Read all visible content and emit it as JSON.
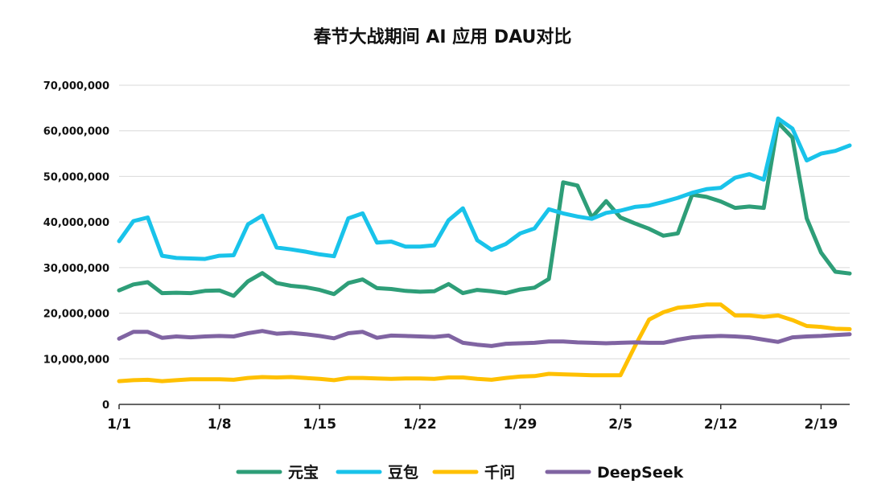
{
  "chart_data": {
    "type": "line",
    "title": "春节大战期间 AI 应用 DAU对比",
    "xlabel": "",
    "ylabel": "",
    "ylim": [
      0,
      70000000
    ],
    "yticks": [
      0,
      10000000,
      20000000,
      30000000,
      40000000,
      50000000,
      60000000,
      70000000
    ],
    "ytick_labels": [
      "0",
      "10,000,000",
      "20,000,000",
      "30,000,000",
      "40,000,000",
      "50,000,000",
      "60,000,000",
      "70,000,000"
    ],
    "x_day_range": [
      1,
      52
    ],
    "xticks": [
      {
        "day": 1,
        "label": "1/1"
      },
      {
        "day": 8,
        "label": "1/8"
      },
      {
        "day": 15,
        "label": "1/15"
      },
      {
        "day": 22,
        "label": "1/22"
      },
      {
        "day": 29,
        "label": "1/29"
      },
      {
        "day": 36,
        "label": "2/5"
      },
      {
        "day": 43,
        "label": "2/12"
      },
      {
        "day": 50,
        "label": "2/19"
      }
    ],
    "legend_position": "bottom",
    "series": [
      {
        "name": "元宝",
        "color": "#2e9e78",
        "values": [
          25000000,
          26300000,
          26800000,
          24400000,
          24500000,
          24400000,
          24900000,
          25000000,
          23800000,
          27000000,
          28800000,
          26600000,
          26000000,
          25700000,
          25100000,
          24200000,
          26600000,
          27400000,
          25500000,
          25300000,
          24900000,
          24700000,
          24800000,
          26400000,
          24400000,
          25100000,
          24800000,
          24400000,
          25200000,
          25600000,
          27500000,
          48700000,
          48000000,
          41000000,
          44600000,
          41000000,
          39700000,
          38500000,
          37000000,
          37500000,
          46000000,
          45500000,
          44500000,
          43100000,
          43400000,
          43100000,
          61800000,
          58500000,
          40800000,
          33300000,
          29100000,
          28700000
        ]
      },
      {
        "name": "豆包",
        "color": "#19c3ea",
        "values": [
          35800000,
          40200000,
          41000000,
          32600000,
          32100000,
          32000000,
          31900000,
          32600000,
          32700000,
          39500000,
          41400000,
          34400000,
          34000000,
          33500000,
          32900000,
          32500000,
          40800000,
          41900000,
          35500000,
          35700000,
          34600000,
          34600000,
          34900000,
          40400000,
          43000000,
          36000000,
          33900000,
          35200000,
          37500000,
          38600000,
          42800000,
          41900000,
          41200000,
          40700000,
          42000000,
          42500000,
          43300000,
          43600000,
          44400000,
          45300000,
          46400000,
          47200000,
          47500000,
          49700000,
          50500000,
          49300000,
          62700000,
          60500000,
          53500000,
          55000000,
          55600000,
          56800000
        ]
      },
      {
        "name": "千问",
        "color": "#ffc000",
        "values": [
          5100000,
          5300000,
          5400000,
          5100000,
          5300000,
          5500000,
          5500000,
          5500000,
          5400000,
          5800000,
          6000000,
          5900000,
          6000000,
          5800000,
          5600000,
          5300000,
          5800000,
          5800000,
          5700000,
          5600000,
          5700000,
          5700000,
          5600000,
          5900000,
          5900000,
          5600000,
          5400000,
          5800000,
          6100000,
          6200000,
          6700000,
          6600000,
          6500000,
          6400000,
          6400000,
          6400000,
          12700000,
          18600000,
          20200000,
          21200000,
          21500000,
          21900000,
          21900000,
          19500000,
          19500000,
          19200000,
          19500000,
          18500000,
          17200000,
          17000000,
          16600000,
          16500000
        ]
      },
      {
        "name": "DeepSeek",
        "color": "#8064a2",
        "values": [
          14400000,
          15900000,
          15900000,
          14600000,
          14900000,
          14700000,
          14900000,
          15000000,
          14900000,
          15600000,
          16100000,
          15500000,
          15700000,
          15400000,
          15000000,
          14500000,
          15600000,
          15900000,
          14600000,
          15100000,
          15000000,
          14900000,
          14800000,
          15100000,
          13500000,
          13100000,
          12800000,
          13300000,
          13400000,
          13500000,
          13800000,
          13800000,
          13600000,
          13500000,
          13400000,
          13500000,
          13600000,
          13500000,
          13500000,
          14200000,
          14700000,
          14900000,
          15000000,
          14900000,
          14700000,
          14200000,
          13700000,
          14700000,
          14900000,
          15000000,
          15200000,
          15400000
        ]
      }
    ]
  }
}
